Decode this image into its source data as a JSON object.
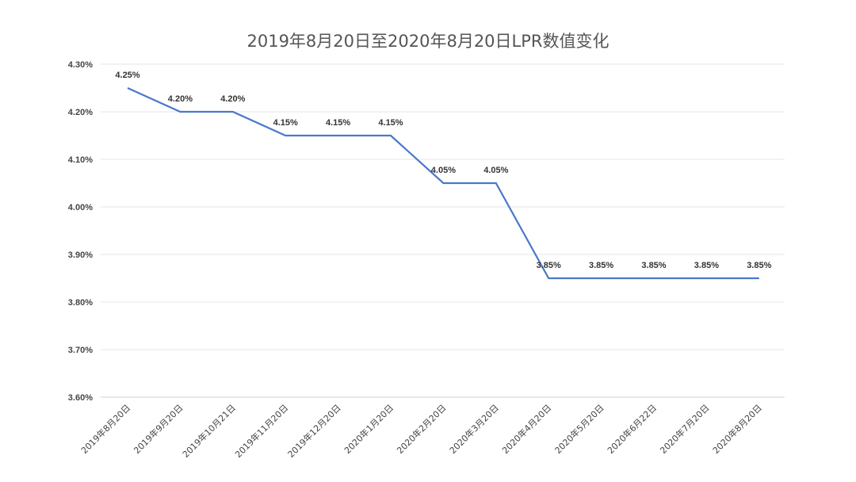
{
  "chart_data": {
    "type": "line",
    "title": "2019年8月20日至2020年8月20日LPR数值变化",
    "categories": [
      "2019年8月20日",
      "2019年9月20日",
      "2019年10月21日",
      "2019年11月20日",
      "2019年12月20日",
      "2020年1月20日",
      "2020年2月20日",
      "2020年3月20日",
      "2020年4月20日",
      "2020年5月20日",
      "2020年6月22日",
      "2020年7月20日",
      "2020年8月20日"
    ],
    "series": [
      {
        "values": [
          4.25,
          4.2,
          4.2,
          4.15,
          4.15,
          4.15,
          4.05,
          4.05,
          3.85,
          3.85,
          3.85,
          3.85,
          3.85
        ],
        "data_labels": [
          "4.25%",
          "4.20%",
          "4.20%",
          "4.15%",
          "4.15%",
          "4.15%",
          "4.05%",
          "4.05%",
          "3.85%",
          "3.85%",
          "3.85%",
          "3.85%",
          "3.85%"
        ],
        "color": "#4a78c8"
      }
    ],
    "y_ticks": [
      "3.60%",
      "3.70%",
      "3.80%",
      "3.90%",
      "4.00%",
      "4.10%",
      "4.20%",
      "4.30%"
    ],
    "ylim": [
      3.6,
      4.3
    ],
    "xlabel": "",
    "ylabel": "",
    "grid": true,
    "legend": "none"
  }
}
